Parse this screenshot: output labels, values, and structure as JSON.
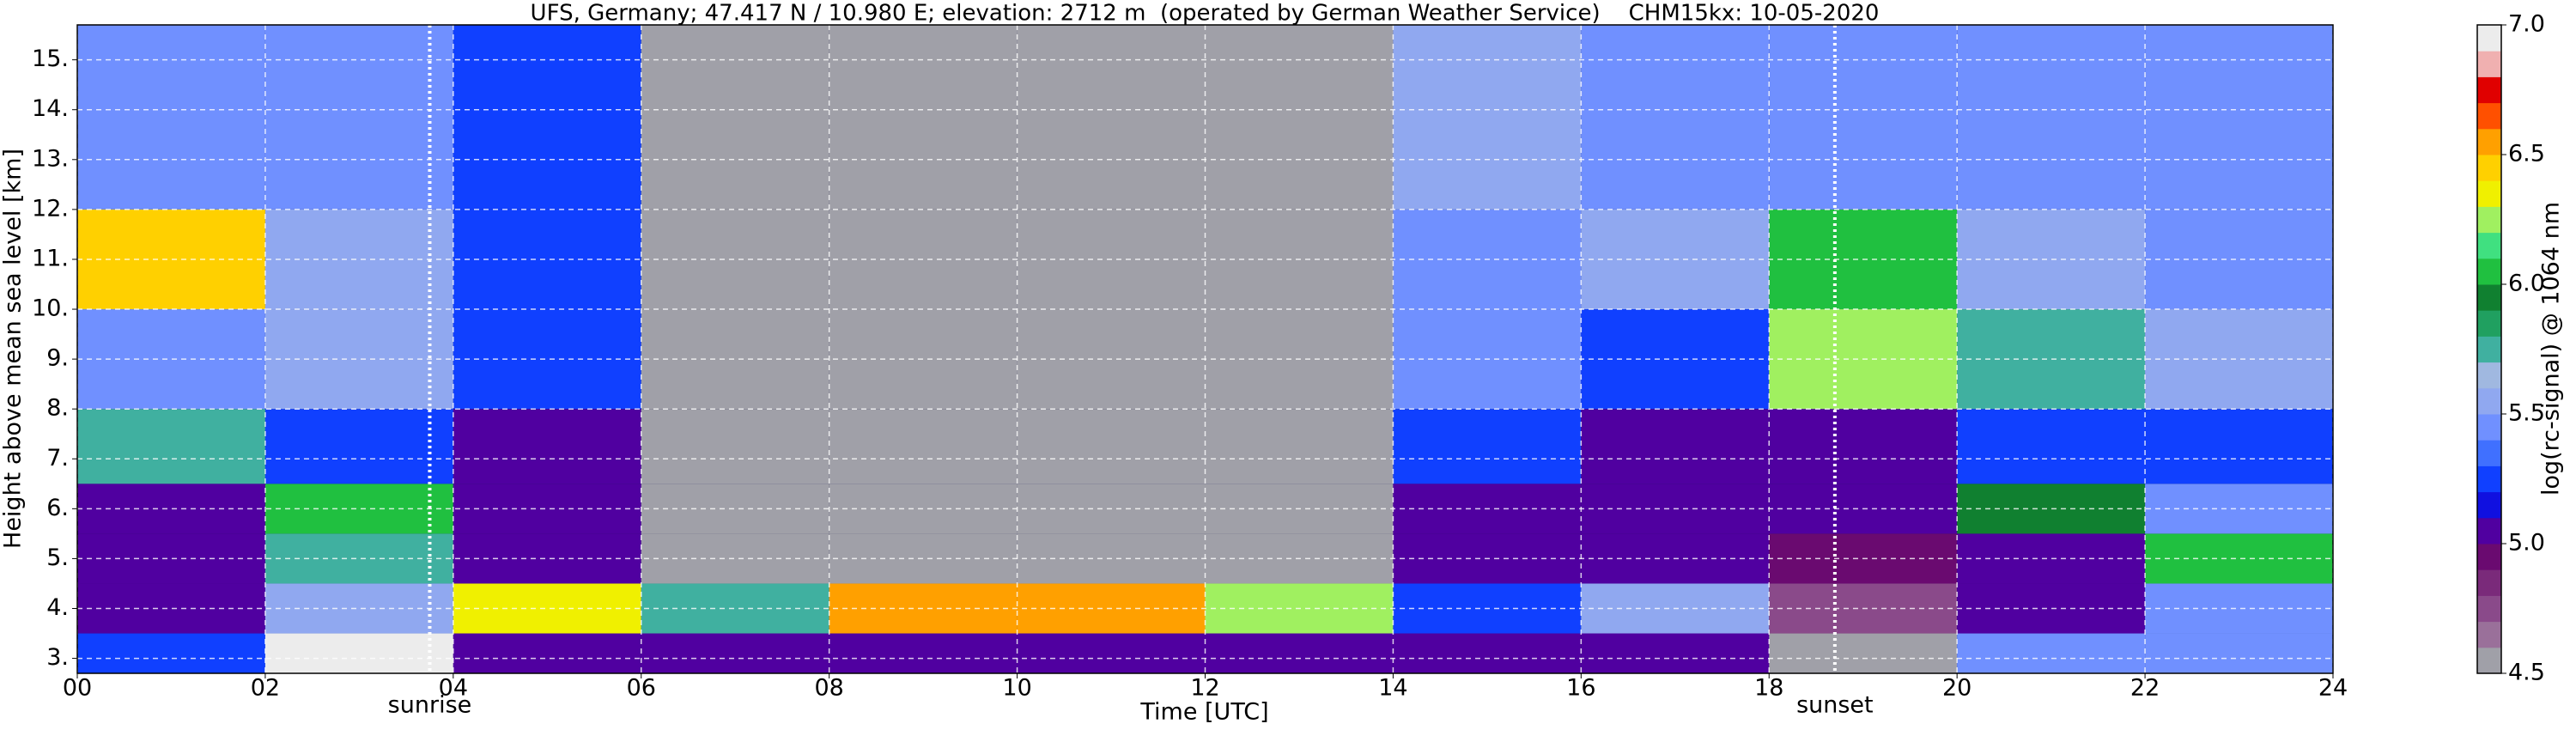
{
  "chart_data": {
    "type": "heatmap",
    "title": "UFS, Germany; 47.417 N / 10.980 E; elevation: 2712 m  (operated by German Weather Service)    CHM15kx: 10-05-2020",
    "x_label": "Time [UTC]",
    "y_label": "Height above mean sea level [km]",
    "xbins": [
      0,
      2,
      4,
      6,
      8,
      10,
      12,
      14,
      16,
      18,
      20,
      22,
      24
    ],
    "ybins": [
      2.7,
      3.5,
      4.5,
      5.5,
      6.5,
      8,
      10,
      12,
      15.7
    ],
    "values": [
      [
        5.3,
        6.9,
        5.0,
        5.0,
        5.0,
        5.0,
        5.0,
        5.0,
        5.0,
        4.6,
        5.4,
        5.4
      ],
      [
        5.0,
        5.6,
        6.3,
        5.8,
        6.5,
        6.6,
        6.2,
        5.2,
        5.6,
        4.7,
        5.0,
        5.4
      ],
      [
        5.0,
        5.8,
        5.0,
        4.6,
        4.6,
        4.6,
        4.6,
        5.0,
        5.0,
        4.9,
        5.1,
        6.0
      ],
      [
        5.1,
        6.0,
        5.1,
        4.6,
        4.6,
        4.6,
        4.6,
        5.1,
        5.1,
        5.1,
        5.9,
        5.4
      ],
      [
        5.8,
        5.2,
        5.1,
        4.6,
        4.6,
        4.6,
        4.6,
        5.2,
        5.1,
        5.1,
        5.3,
        5.3
      ],
      [
        5.4,
        5.5,
        5.2,
        4.6,
        4.6,
        4.6,
        4.6,
        5.4,
        5.2,
        6.2,
        5.8,
        5.6
      ],
      [
        6.4,
        5.6,
        5.2,
        4.6,
        4.6,
        4.6,
        4.6,
        5.4,
        5.6,
        6.0,
        5.6,
        5.4
      ],
      [
        5.4,
        5.4,
        5.3,
        4.6,
        4.6,
        4.6,
        4.6,
        5.5,
        5.4,
        5.4,
        5.4,
        5.4
      ]
    ],
    "xlim": [
      0,
      24
    ],
    "xticks": [
      {
        "value": 0,
        "label": "00"
      },
      {
        "value": 2,
        "label": "02"
      },
      {
        "value": 4,
        "label": "04"
      },
      {
        "value": 6,
        "label": "06"
      },
      {
        "value": 8,
        "label": "08"
      },
      {
        "value": 10,
        "label": "10"
      },
      {
        "value": 12,
        "label": "12"
      },
      {
        "value": 14,
        "label": "14"
      },
      {
        "value": 16,
        "label": "16"
      },
      {
        "value": 18,
        "label": "18"
      },
      {
        "value": 20,
        "label": "20"
      },
      {
        "value": 22,
        "label": "22"
      },
      {
        "value": 24,
        "label": "24"
      }
    ],
    "ylim": [
      2.7,
      15.7
    ],
    "yticks": [
      {
        "value": 3,
        "label": "3."
      },
      {
        "value": 4,
        "label": "4."
      },
      {
        "value": 5,
        "label": "5."
      },
      {
        "value": 6,
        "label": "6."
      },
      {
        "value": 7,
        "label": "7."
      },
      {
        "value": 8,
        "label": "8."
      },
      {
        "value": 9,
        "label": "9."
      },
      {
        "value": 10,
        "label": "10."
      },
      {
        "value": 11,
        "label": "11."
      },
      {
        "value": 12,
        "label": "12."
      },
      {
        "value": 13,
        "label": "13."
      },
      {
        "value": 14,
        "label": "14."
      },
      {
        "value": 15,
        "label": "15."
      }
    ],
    "grid": true,
    "annotations": [
      {
        "x": 3.75,
        "label": "sunrise"
      },
      {
        "x": 18.7,
        "label": "sunset"
      }
    ],
    "colorbar": {
      "label": "log(rc-signal) @ 1064 nm",
      "lim": [
        4.5,
        7.0
      ],
      "ticks": [
        4.5,
        {
          "value": 5.0,
          "label": "5.0"
        },
        5.5,
        {
          "value": 6.0,
          "label": "6.0"
        },
        6.5,
        {
          "value": 7.0,
          "label": "7.0"
        }
      ],
      "colors": [
        "#a0a0a8",
        "#9a709a",
        "#8a4a8a",
        "#7a2a7a",
        "#6a0a70",
        "#5000a0",
        "#1010e0",
        "#1040ff",
        "#4070ff",
        "#7090ff",
        "#90a8f0",
        "#a0b8e0",
        "#40b0a0",
        "#20a060",
        "#108030",
        "#20c040",
        "#40e080",
        "#a0f060",
        "#f0f000",
        "#ffd000",
        "#ffa000",
        "#ff5000",
        "#e00000",
        "#f0b0b0",
        "#ececec"
      ]
    }
  }
}
